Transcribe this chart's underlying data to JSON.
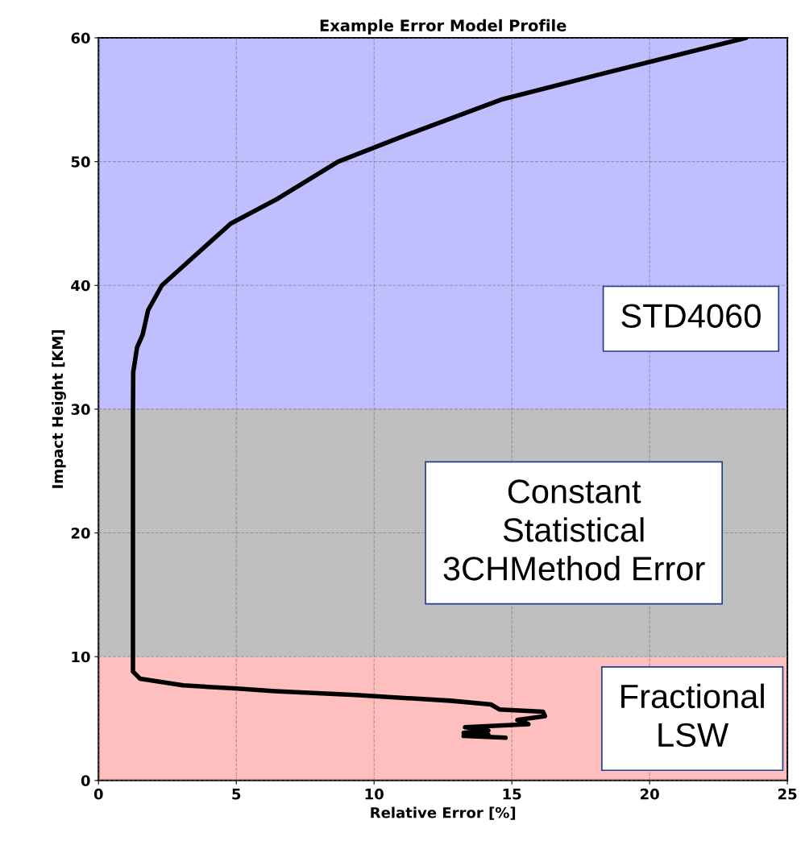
{
  "chart_data": {
    "type": "line",
    "title": "Example Error Model Profile",
    "xlabel": "Relative Error [%]",
    "ylabel": "Impact Height [KM]",
    "xlim": [
      0,
      25
    ],
    "ylim": [
      0,
      60
    ],
    "xticks": [
      0,
      5,
      10,
      15,
      20,
      25
    ],
    "yticks": [
      0,
      10,
      20,
      30,
      40,
      50,
      60
    ],
    "grid": true,
    "marker": "none",
    "line_style": "solid",
    "bands": [
      {
        "axis": "y",
        "from": 0,
        "to": 10,
        "label": "Fractional\nLSW",
        "color": "#ffbfbf"
      },
      {
        "axis": "y",
        "from": 10,
        "to": 30,
        "label": "Constant\nStatistical\n3CHMethod Error",
        "color": "#bfbfbf"
      },
      {
        "axis": "y",
        "from": 30,
        "to": 60,
        "label": "STD4060",
        "color": "#bfbfff"
      }
    ],
    "series": [
      {
        "color": "#000000",
        "x": [
          14.77,
          13.25,
          14.15,
          13.25,
          14.15,
          13.3,
          15.6,
          15.2,
          16.2,
          16.13,
          14.56,
          14.24,
          12.78,
          9.33,
          6.4,
          5.03,
          3.07,
          1.5,
          1.25,
          1.25,
          1.26,
          1.4,
          1.6,
          1.8,
          2.3,
          3.3,
          4.8,
          6.5,
          8.7,
          11,
          14.6,
          18.1,
          23.5
        ],
        "values": [
          3.45,
          3.6,
          3.7,
          3.84,
          4.03,
          4.3,
          4.55,
          4.88,
          5.2,
          5.56,
          5.73,
          6.14,
          6.44,
          6.9,
          7.22,
          7.42,
          7.68,
          8.23,
          8.8,
          30,
          33,
          35,
          36,
          38,
          40,
          42,
          45,
          47,
          50,
          52,
          55,
          57,
          60
        ]
      }
    ]
  }
}
